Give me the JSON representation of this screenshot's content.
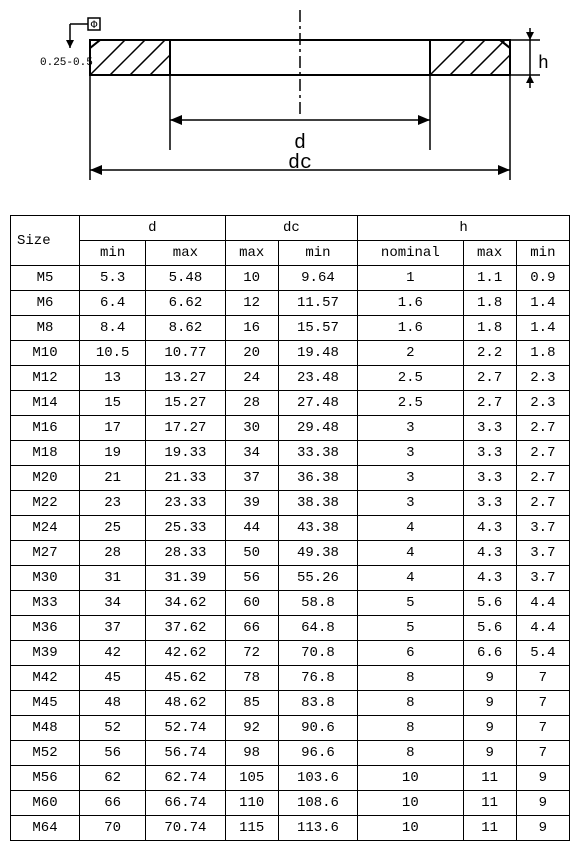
{
  "diagram": {
    "tol_label": "0.25-0.5",
    "d_label": "d",
    "dc_label": "dc",
    "h_label": "h",
    "phi_label": "Φ",
    "line_color": "#000000",
    "hatch_color": "#000000",
    "background": "#ffffff"
  },
  "table": {
    "header": {
      "size": "Size",
      "d": "d",
      "dc": "dc",
      "h": "h",
      "min": "min",
      "max": "max",
      "nominal": "nominal"
    },
    "col_widths": [
      "58px",
      "62px",
      "62px",
      "62px",
      "62px",
      "62px",
      "62px",
      "62px"
    ],
    "rows": [
      [
        "M5",
        "5.3",
        "5.48",
        "10",
        "9.64",
        "1",
        "1.1",
        "0.9"
      ],
      [
        "M6",
        "6.4",
        "6.62",
        "12",
        "11.57",
        "1.6",
        "1.8",
        "1.4"
      ],
      [
        "M8",
        "8.4",
        "8.62",
        "16",
        "15.57",
        "1.6",
        "1.8",
        "1.4"
      ],
      [
        "M10",
        "10.5",
        "10.77",
        "20",
        "19.48",
        "2",
        "2.2",
        "1.8"
      ],
      [
        "M12",
        "13",
        "13.27",
        "24",
        "23.48",
        "2.5",
        "2.7",
        "2.3"
      ],
      [
        "M14",
        "15",
        "15.27",
        "28",
        "27.48",
        "2.5",
        "2.7",
        "2.3"
      ],
      [
        "M16",
        "17",
        "17.27",
        "30",
        "29.48",
        "3",
        "3.3",
        "2.7"
      ],
      [
        "M18",
        "19",
        "19.33",
        "34",
        "33.38",
        "3",
        "3.3",
        "2.7"
      ],
      [
        "M20",
        "21",
        "21.33",
        "37",
        "36.38",
        "3",
        "3.3",
        "2.7"
      ],
      [
        "M22",
        "23",
        "23.33",
        "39",
        "38.38",
        "3",
        "3.3",
        "2.7"
      ],
      [
        "M24",
        "25",
        "25.33",
        "44",
        "43.38",
        "4",
        "4.3",
        "3.7"
      ],
      [
        "M27",
        "28",
        "28.33",
        "50",
        "49.38",
        "4",
        "4.3",
        "3.7"
      ],
      [
        "M30",
        "31",
        "31.39",
        "56",
        "55.26",
        "4",
        "4.3",
        "3.7"
      ],
      [
        "M33",
        "34",
        "34.62",
        "60",
        "58.8",
        "5",
        "5.6",
        "4.4"
      ],
      [
        "M36",
        "37",
        "37.62",
        "66",
        "64.8",
        "5",
        "5.6",
        "4.4"
      ],
      [
        "M39",
        "42",
        "42.62",
        "72",
        "70.8",
        "6",
        "6.6",
        "5.4"
      ],
      [
        "M42",
        "45",
        "45.62",
        "78",
        "76.8",
        "8",
        "9",
        "7"
      ],
      [
        "M45",
        "48",
        "48.62",
        "85",
        "83.8",
        "8",
        "9",
        "7"
      ],
      [
        "M48",
        "52",
        "52.74",
        "92",
        "90.6",
        "8",
        "9",
        "7"
      ],
      [
        "M52",
        "56",
        "56.74",
        "98",
        "96.6",
        "8",
        "9",
        "7"
      ],
      [
        "M56",
        "62",
        "62.74",
        "105",
        "103.6",
        "10",
        "11",
        "9"
      ],
      [
        "M60",
        "66",
        "66.74",
        "110",
        "108.6",
        "10",
        "11",
        "9"
      ],
      [
        "M64",
        "70",
        "70.74",
        "115",
        "113.6",
        "10",
        "11",
        "9"
      ]
    ]
  }
}
